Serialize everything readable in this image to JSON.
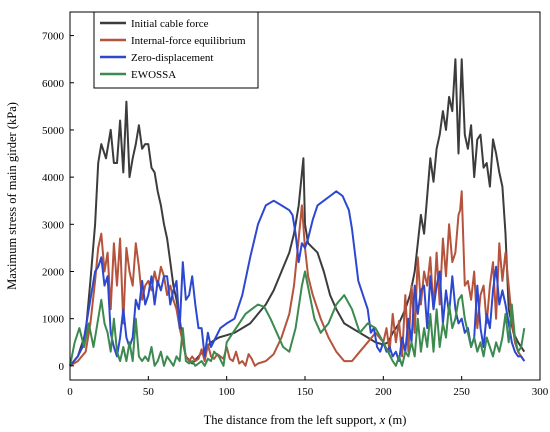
{
  "chart_data": {
    "type": "line",
    "title": "",
    "xlabel": "The distance from the left support, ",
    "xlabel_var": "x",
    "xlabel_unit": " (m)",
    "ylabel": "Maximum stress of main girder (kPa)",
    "xlim": [
      0,
      300
    ],
    "ylim": [
      -300,
      7500
    ],
    "xticks": [
      0,
      50,
      100,
      150,
      200,
      250,
      300
    ],
    "yticks": [
      0,
      1000,
      2000,
      3000,
      4000,
      5000,
      6000,
      7000
    ],
    "grid": false,
    "legend_position": "top-left",
    "series": [
      {
        "name": "Initial cable force",
        "color": "#3c3c3c",
        "x": [
          0,
          5,
          10,
          13,
          16,
          18,
          20,
          23,
          26,
          28,
          30,
          32,
          34,
          36,
          38,
          40,
          42,
          44,
          46,
          48,
          50,
          52,
          54,
          56,
          58,
          60,
          62,
          64,
          66,
          68,
          70,
          72,
          74,
          78,
          82,
          86,
          90,
          95,
          100,
          105,
          110,
          115,
          120,
          125,
          130,
          135,
          140,
          143,
          146,
          149,
          150,
          152,
          155,
          158,
          162,
          166,
          170,
          175,
          180,
          185,
          190,
          195,
          200,
          203,
          206,
          210,
          214,
          217,
          220,
          222,
          224,
          226,
          228,
          230,
          232,
          234,
          236,
          238,
          240,
          242,
          244,
          246,
          248,
          249,
          250,
          252,
          254,
          256,
          258,
          260,
          262,
          264,
          266,
          268,
          270,
          272,
          274,
          276,
          278,
          280,
          283,
          286,
          290
        ],
        "values": [
          0,
          200,
          700,
          1800,
          3000,
          4300,
          4700,
          4400,
          5000,
          4300,
          4300,
          5200,
          4100,
          5600,
          4000,
          4400,
          4700,
          5100,
          4600,
          4700,
          4700,
          4200,
          4100,
          3700,
          3400,
          3000,
          2700,
          2200,
          1700,
          1400,
          1000,
          500,
          200,
          50,
          200,
          350,
          500,
          600,
          650,
          700,
          800,
          900,
          1100,
          1300,
          1600,
          2000,
          2400,
          2800,
          3400,
          4400,
          3000,
          2600,
          2500,
          2400,
          2000,
          1500,
          1200,
          900,
          800,
          700,
          600,
          500,
          450,
          500,
          700,
          900,
          1200,
          1500,
          2000,
          2600,
          3200,
          2800,
          3600,
          4400,
          3900,
          4600,
          4900,
          5400,
          5000,
          5700,
          5400,
          6500,
          4500,
          5500,
          6500,
          4900,
          4600,
          5100,
          4000,
          4800,
          4900,
          4200,
          4300,
          3800,
          4800,
          4500,
          4100,
          3800,
          2800,
          1200,
          700,
          500,
          300
        ]
      },
      {
        "name": "Internal-force equilibrium",
        "color": "#b5533c",
        "x": [
          0,
          5,
          10,
          13,
          16,
          18,
          20,
          22,
          24,
          26,
          28,
          30,
          32,
          34,
          36,
          38,
          40,
          42,
          44,
          46,
          48,
          50,
          52,
          54,
          56,
          58,
          60,
          62,
          64,
          66,
          68,
          70,
          72,
          74,
          76,
          78,
          80,
          82,
          84,
          86,
          88,
          90,
          92,
          94,
          96,
          98,
          100,
          102,
          104,
          106,
          108,
          110,
          112,
          114,
          116,
          118,
          120,
          125,
          130,
          135,
          140,
          143,
          146,
          148,
          150,
          152,
          155,
          160,
          165,
          170,
          175,
          180,
          185,
          190,
          195,
          200,
          202,
          204,
          206,
          208,
          210,
          212,
          214,
          216,
          218,
          220,
          222,
          224,
          226,
          228,
          230,
          232,
          234,
          236,
          238,
          240,
          242,
          244,
          246,
          248,
          249,
          250,
          252,
          254,
          256,
          258,
          260,
          262,
          264,
          266,
          268,
          270,
          272,
          274,
          276,
          278,
          280,
          282,
          284,
          286,
          288,
          290
        ],
        "values": [
          0,
          100,
          300,
          900,
          1800,
          2500,
          2800,
          2000,
          2400,
          1200,
          2600,
          1700,
          2700,
          900,
          2500,
          2000,
          1700,
          2600,
          2100,
          1400,
          1700,
          1800,
          1600,
          2000,
          1700,
          2100,
          1900,
          1500,
          1700,
          1400,
          1200,
          800,
          500,
          200,
          100,
          200,
          100,
          150,
          350,
          100,
          450,
          200,
          150,
          250,
          200,
          150,
          400,
          150,
          100,
          300,
          50,
          100,
          0,
          250,
          150,
          0,
          50,
          100,
          250,
          600,
          1100,
          1700,
          2700,
          3400,
          2500,
          1900,
          1500,
          1000,
          600,
          300,
          100,
          100,
          300,
          500,
          700,
          500,
          800,
          300,
          1100,
          500,
          950,
          200,
          1500,
          300,
          1700,
          700,
          2300,
          1300,
          2000,
          1700,
          2300,
          1200,
          2400,
          1300,
          2700,
          1900,
          3000,
          2200,
          2400,
          3200,
          3300,
          3700,
          1700,
          1800,
          1400,
          2000,
          800,
          1500,
          1700,
          900,
          1700,
          2200,
          1000,
          2600,
          1800,
          2400,
          1700,
          1000,
          500,
          300,
          200,
          100
        ]
      },
      {
        "name": "Zero-displacement",
        "color": "#2d48d0",
        "x": [
          0,
          5,
          8,
          10,
          12,
          14,
          16,
          18,
          20,
          22,
          24,
          26,
          28,
          30,
          32,
          34,
          36,
          38,
          40,
          42,
          44,
          46,
          48,
          50,
          52,
          54,
          56,
          58,
          60,
          62,
          64,
          66,
          68,
          70,
          72,
          74,
          76,
          78,
          80,
          82,
          84,
          86,
          88,
          90,
          93,
          96,
          100,
          105,
          110,
          115,
          120,
          125,
          130,
          135,
          140,
          142,
          144,
          146,
          148,
          150,
          152,
          155,
          158,
          162,
          166,
          170,
          174,
          178,
          180,
          184,
          187,
          190,
          192,
          194,
          196,
          198,
          200,
          202,
          204,
          206,
          208,
          210,
          212,
          214,
          216,
          218,
          220,
          222,
          224,
          226,
          228,
          230,
          232,
          234,
          236,
          238,
          240,
          242,
          244,
          246,
          248,
          250,
          252,
          254,
          256,
          258,
          260,
          262,
          264,
          266,
          268,
          270,
          272,
          274,
          276,
          278,
          280,
          282,
          284,
          286,
          288,
          290
        ],
        "values": [
          0,
          200,
          400,
          800,
          1200,
          1600,
          2000,
          2100,
          2300,
          1700,
          1900,
          700,
          400,
          200,
          600,
          1200,
          600,
          400,
          600,
          1400,
          1200,
          1800,
          1300,
          1500,
          1900,
          1300,
          1800,
          1600,
          1900,
          1900,
          1300,
          1600,
          1800,
          800,
          2200,
          1400,
          1500,
          1900,
          1300,
          800,
          800,
          200,
          700,
          400,
          600,
          800,
          900,
          1000,
          1500,
          2300,
          3000,
          3400,
          3500,
          3400,
          3300,
          3200,
          2800,
          2200,
          2600,
          2500,
          2700,
          3100,
          3400,
          3500,
          3600,
          3700,
          3600,
          3300,
          2900,
          1800,
          1500,
          1200,
          700,
          800,
          400,
          300,
          500,
          300,
          400,
          200,
          300,
          100,
          600,
          300,
          1000,
          500,
          1700,
          1100,
          1600,
          1700,
          800,
          1900,
          1200,
          1700,
          2000,
          900,
          1600,
          1100,
          1900,
          1200,
          900,
          1000,
          700,
          800,
          400,
          600,
          1700,
          800,
          400,
          1100,
          800,
          1600,
          2100,
          1300,
          1600,
          1300,
          900,
          500,
          300,
          200,
          200,
          100
        ]
      },
      {
        "name": "EWOSSA",
        "color": "#3c8a50",
        "x": [
          0,
          3,
          6,
          9,
          12,
          15,
          18,
          20,
          22,
          24,
          26,
          28,
          30,
          32,
          34,
          36,
          38,
          40,
          42,
          44,
          46,
          48,
          50,
          52,
          54,
          56,
          58,
          60,
          62,
          64,
          66,
          68,
          70,
          72,
          74,
          76,
          78,
          80,
          82,
          84,
          86,
          88,
          90,
          92,
          95,
          98,
          100,
          104,
          108,
          112,
          116,
          120,
          124,
          128,
          132,
          136,
          140,
          144,
          148,
          150,
          153,
          156,
          160,
          165,
          170,
          175,
          180,
          185,
          190,
          195,
          200,
          203,
          206,
          208,
          210,
          212,
          214,
          216,
          218,
          220,
          222,
          224,
          226,
          228,
          230,
          232,
          234,
          236,
          238,
          240,
          242,
          244,
          246,
          248,
          250,
          252,
          254,
          256,
          258,
          260,
          262,
          264,
          266,
          268,
          270,
          272,
          274,
          276,
          278,
          280,
          282,
          284,
          286,
          288,
          290
        ],
        "values": [
          0,
          500,
          800,
          400,
          900,
          400,
          1000,
          1400,
          900,
          700,
          300,
          1000,
          300,
          100,
          400,
          100,
          500,
          100,
          1000,
          200,
          100,
          200,
          100,
          400,
          0,
          100,
          300,
          0,
          200,
          100,
          0,
          200,
          100,
          800,
          100,
          50,
          100,
          0,
          50,
          100,
          0,
          150,
          100,
          300,
          200,
          0,
          500,
          700,
          900,
          1100,
          1200,
          1300,
          1250,
          1000,
          700,
          400,
          300,
          800,
          1700,
          2000,
          1500,
          1000,
          700,
          900,
          1300,
          1500,
          1200,
          700,
          900,
          800,
          500,
          300,
          100,
          0,
          200,
          0,
          300,
          200,
          500,
          200,
          1000,
          300,
          800,
          400,
          1100,
          300,
          1200,
          400,
          900,
          600,
          1300,
          800,
          1000,
          1400,
          1500,
          1000,
          700,
          400,
          600,
          300,
          500,
          200,
          600,
          400,
          200,
          500,
          300,
          600,
          1100,
          500,
          1300,
          600,
          300,
          400,
          800
        ]
      }
    ]
  }
}
